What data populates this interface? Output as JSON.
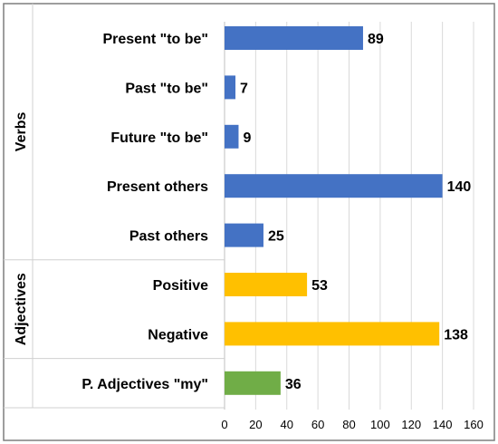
{
  "chart_data": {
    "type": "bar",
    "orientation": "horizontal",
    "groups": [
      {
        "name": "Verbs",
        "color": "#4472C4",
        "categories": [
          "Present \"to be\"",
          "Past \"to be\"",
          "Future \"to be\"",
          "Present others",
          "Past others"
        ],
        "values": [
          89,
          7,
          9,
          140,
          25
        ]
      },
      {
        "name": "Adjectives",
        "color": "#FFC000",
        "categories": [
          "Positive",
          "Negative"
        ],
        "values": [
          53,
          138
        ]
      },
      {
        "name": "",
        "color": "#70AD47",
        "categories": [
          "P. Adjectives \"my\""
        ],
        "values": [
          36
        ]
      }
    ],
    "xlim": [
      0,
      160
    ],
    "xticks": [
      0,
      20,
      40,
      60,
      80,
      100,
      120,
      140,
      160
    ],
    "grid": true,
    "data_labels": true,
    "legend": "none"
  }
}
